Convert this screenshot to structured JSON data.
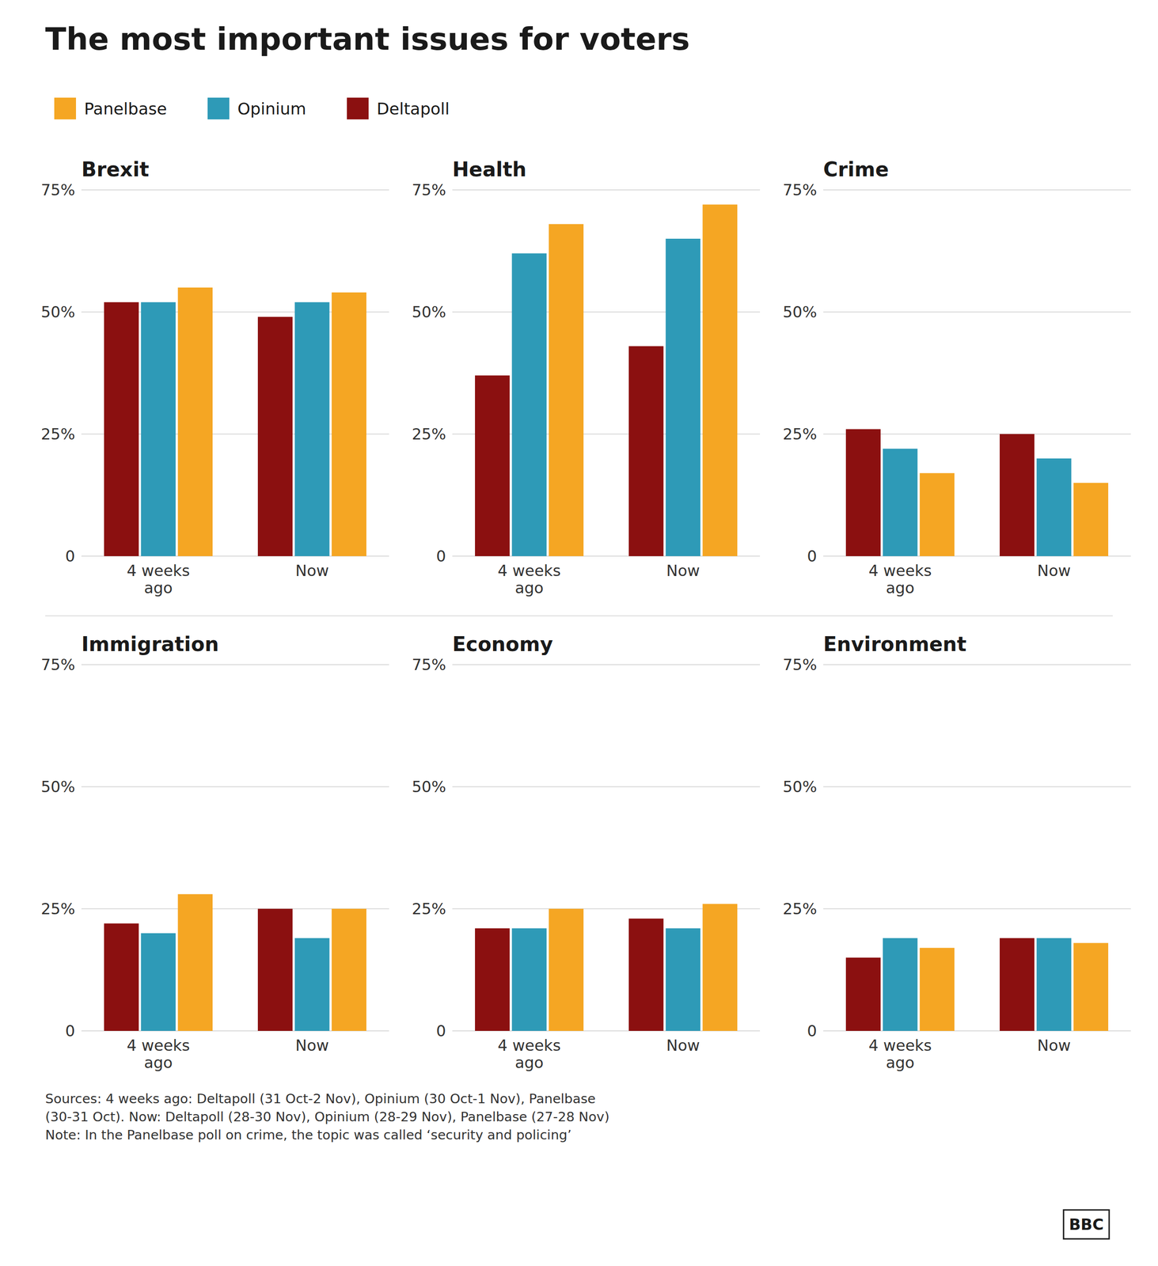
{
  "title": "The most important issues for voters",
  "annotations": [
    "Sources: 4 weeks ago: Deltapoll (31 Oct-2 Nov), Opinium (30 Oct-1 Nov), Panelbase\n(30-31 Oct). Now: Deltapoll (28-30 Nov), Opinium (28-29 Nov), Panelbase (27-28 Nov)\nNote: In the Panelbase poll on crime, the topic was called ‘security and policing’",
    "BBC"
  ],
  "chart_data": [
    {
      "type": "bar",
      "title": "Brexit",
      "categories": [
        "4 weeks\nago",
        "Now"
      ],
      "series": [
        {
          "name": "Deltapoll",
          "color": "#8B1010",
          "values": [
            52,
            49
          ]
        },
        {
          "name": "Opinium",
          "color": "#2E9AB7",
          "values": [
            52,
            52
          ]
        },
        {
          "name": "Panelbase",
          "color": "#F5A623",
          "values": [
            55,
            54
          ]
        }
      ],
      "ylim": [
        0,
        75
      ],
      "yticks": [
        0,
        {
          "value": 25,
          "label": "25%"
        },
        {
          "value": 50,
          "label": "50%"
        },
        {
          "value": 75,
          "label": "75%"
        }
      ],
      "grid": true,
      "legend": "top"
    },
    {
      "type": "bar",
      "title": "Health",
      "categories": [
        "4 weeks\nago",
        "Now"
      ],
      "series": [
        {
          "name": "Deltapoll",
          "color": "#8B1010",
          "values": [
            37,
            43
          ]
        },
        {
          "name": "Opinium",
          "color": "#2E9AB7",
          "values": [
            62,
            65
          ]
        },
        {
          "name": "Panelbase",
          "color": "#F5A623",
          "values": [
            68,
            72
          ]
        }
      ],
      "ylim": [
        0,
        75
      ],
      "yticks": [
        0,
        {
          "value": 25,
          "label": "25%"
        },
        {
          "value": 50,
          "label": "50%"
        },
        {
          "value": 75,
          "label": "75%"
        }
      ],
      "grid": true
    },
    {
      "type": "bar",
      "title": "Crime",
      "categories": [
        "4 weeks\nago",
        "Now"
      ],
      "series": [
        {
          "name": "Deltapoll",
          "color": "#8B1010",
          "values": [
            26,
            25
          ]
        },
        {
          "name": "Opinium",
          "color": "#2E9AB7",
          "values": [
            22,
            20
          ]
        },
        {
          "name": "Panelbase",
          "color": "#F5A623",
          "values": [
            17,
            15
          ]
        }
      ],
      "ylim": [
        0,
        75
      ],
      "yticks": [
        0,
        {
          "value": 25,
          "label": "25%"
        },
        {
          "value": 50,
          "label": "50%"
        },
        {
          "value": 75,
          "label": "75%"
        }
      ],
      "grid": true
    },
    {
      "type": "bar",
      "title": "Immigration",
      "categories": [
        "4 weeks\nago",
        "Now"
      ],
      "series": [
        {
          "name": "Deltapoll",
          "color": "#8B1010",
          "values": [
            22,
            25
          ]
        },
        {
          "name": "Opinium",
          "color": "#2E9AB7",
          "values": [
            20,
            19
          ]
        },
        {
          "name": "Panelbase",
          "color": "#F5A623",
          "values": [
            28,
            25
          ]
        }
      ],
      "ylim": [
        0,
        75
      ],
      "yticks": [
        0,
        {
          "value": 25,
          "label": "25%"
        },
        {
          "value": 50,
          "label": "50%"
        },
        {
          "value": 75,
          "label": "75%"
        }
      ],
      "grid": true
    },
    {
      "type": "bar",
      "title": "Economy",
      "categories": [
        "4 weeks\nago",
        "Now"
      ],
      "series": [
        {
          "name": "Deltapoll",
          "color": "#8B1010",
          "values": [
            21,
            23
          ]
        },
        {
          "name": "Opinium",
          "color": "#2E9AB7",
          "values": [
            21,
            21
          ]
        },
        {
          "name": "Panelbase",
          "color": "#F5A623",
          "values": [
            25,
            26
          ]
        }
      ],
      "ylim": [
        0,
        75
      ],
      "yticks": [
        0,
        {
          "value": 25,
          "label": "25%"
        },
        {
          "value": 50,
          "label": "50%"
        },
        {
          "value": 75,
          "label": "75%"
        }
      ],
      "grid": true
    },
    {
      "type": "bar",
      "title": "Environment",
      "categories": [
        "4 weeks\nago",
        "Now"
      ],
      "series": [
        {
          "name": "Deltapoll",
          "color": "#8B1010",
          "values": [
            15,
            19
          ]
        },
        {
          "name": "Opinium",
          "color": "#2E9AB7",
          "values": [
            19,
            19
          ]
        },
        {
          "name": "Panelbase",
          "color": "#F5A623",
          "values": [
            17,
            18
          ]
        }
      ],
      "ylim": [
        0,
        75
      ],
      "yticks": [
        0,
        {
          "value": 25,
          "label": "25%"
        },
        {
          "value": 50,
          "label": "50%"
        },
        {
          "value": 75,
          "label": "75%"
        }
      ],
      "grid": true
    }
  ]
}
